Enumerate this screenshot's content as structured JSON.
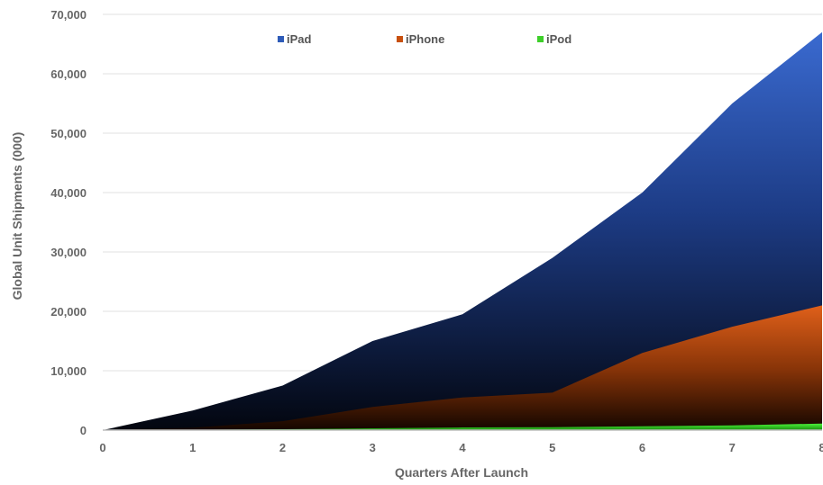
{
  "chart_data": {
    "type": "area",
    "stacked": true,
    "xlabel": "Quarters After Launch",
    "ylabel": "Global Unit Shipments (000)",
    "x": [
      0,
      1,
      2,
      3,
      4,
      5,
      6,
      7,
      8
    ],
    "x_tick_labels": [
      "0",
      "1",
      "2",
      "3",
      "4",
      "5",
      "6",
      "7",
      "8"
    ],
    "ylim": [
      0,
      70000
    ],
    "y_ticks": [
      0,
      10000,
      20000,
      30000,
      40000,
      50000,
      60000,
      70000
    ],
    "y_tick_labels": [
      "0",
      "10,000",
      "20,000",
      "30,000",
      "40,000",
      "50,000",
      "60,000",
      "70,000"
    ],
    "grid": true,
    "legend_position": "top",
    "series": [
      {
        "name": "iPad",
        "cumulative_values": [
          0,
          3300,
          7500,
          15000,
          19500,
          29000,
          40000,
          55000,
          67000
        ],
        "color": "#2e5bb8"
      },
      {
        "name": "iPhone",
        "cumulative_values": [
          0,
          400,
          1500,
          3900,
          5500,
          6300,
          13000,
          17400,
          21000
        ],
        "color": "#c8500f"
      },
      {
        "name": "iPod",
        "cumulative_values": [
          0,
          50,
          150,
          300,
          450,
          500,
          650,
          800,
          1100
        ],
        "color": "#3ecf2a"
      }
    ]
  }
}
